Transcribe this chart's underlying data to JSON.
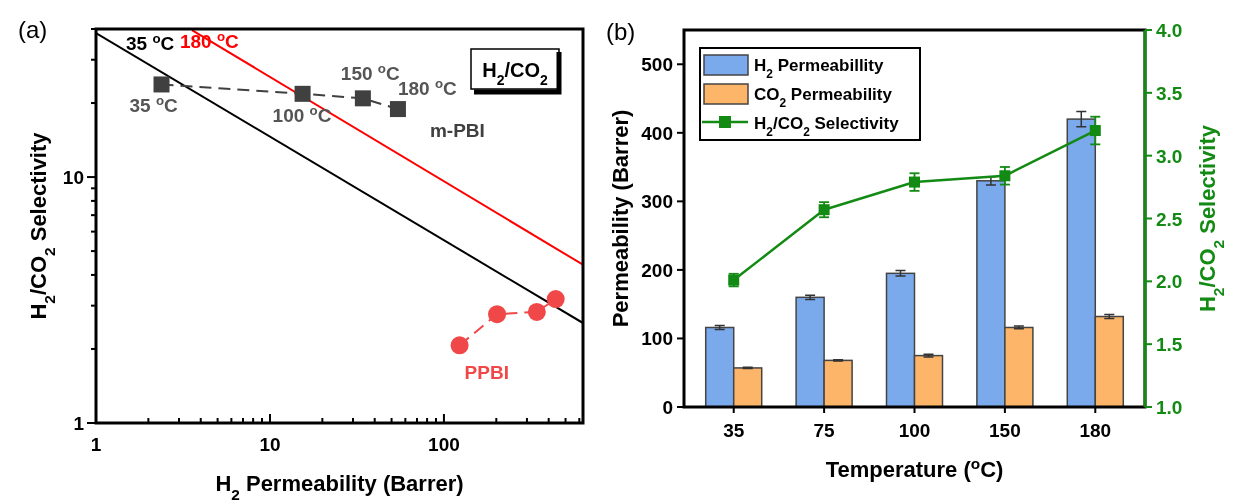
{
  "chart_data": [
    {
      "type": "line",
      "title": "(a)",
      "xlabel": "H$_{2}$ Permeability (Barrer)",
      "ylabel": "H$_{2}$/CO$_{2}$ Selectivity",
      "log": "xy",
      "grid": false,
      "xlim": [
        1,
        630
      ],
      "ylim": [
        1,
        40
      ],
      "xticks": [
        1,
        {
          "value": 2,
          "label": null
        },
        {
          "value": 3,
          "label": null
        },
        {
          "value": 4,
          "label": null
        },
        {
          "value": 5,
          "label": null
        },
        {
          "value": 6,
          "label": null
        },
        {
          "value": 7,
          "label": null
        },
        {
          "value": 8,
          "label": null
        },
        {
          "value": 9,
          "label": null
        },
        10,
        {
          "value": 20,
          "label": null
        },
        {
          "value": 30,
          "label": null
        },
        {
          "value": 40,
          "label": null
        },
        {
          "value": 50,
          "label": null
        },
        {
          "value": 60,
          "label": null
        },
        {
          "value": 70,
          "label": null
        },
        {
          "value": 80,
          "label": null
        },
        {
          "value": 90,
          "label": null
        },
        100,
        {
          "value": 200,
          "label": null
        },
        {
          "value": 300,
          "label": null
        },
        {
          "value": 400,
          "label": null
        },
        {
          "value": 500,
          "label": null
        },
        {
          "value": 600,
          "label": null
        }
      ],
      "yticks": [
        1,
        {
          "value": 2,
          "label": null
        },
        {
          "value": 3,
          "label": null
        },
        {
          "value": 4,
          "label": null
        },
        {
          "value": 5,
          "label": null
        },
        {
          "value": 6,
          "label": null
        },
        {
          "value": 7,
          "label": null
        },
        {
          "value": 8,
          "label": null
        },
        {
          "value": 9,
          "label": null
        },
        10,
        {
          "value": 20,
          "label": null
        },
        {
          "value": 30,
          "label": null
        },
        {
          "value": 40,
          "label": null
        }
      ],
      "series": [
        {
          "name": "35 $^{o}$C",
          "type": "line",
          "color": "#000000",
          "marker": "none",
          "line_style": "solid",
          "x": [
            1,
            630
          ],
          "values": [
            38.5,
            2.55
          ]
        },
        {
          "name": "180 $^{o}$C",
          "type": "line",
          "color": "#ff0000",
          "marker": "none",
          "line_style": "solid",
          "x": [
            3.56,
            630
          ],
          "values": [
            39.6,
            4.4
          ]
        },
        {
          "name": "m-PBI",
          "type": "line",
          "color": "#404040",
          "marker": "square",
          "line_style": "dashed",
          "x": [
            2.38,
            15.4,
            34.2,
            54.4
          ],
          "values": [
            23.8,
            21.8,
            20.9,
            18.9
          ]
        },
        {
          "name": "PPBI",
          "type": "line",
          "color": "#f04848",
          "marker": "circle",
          "line_style": "dashed",
          "x": [
            123,
            202,
            342,
            439
          ],
          "values": [
            2.07,
            2.77,
            2.83,
            3.19
          ]
        }
      ],
      "annotations": [
        {
          "text": "35 $^{o}$C",
          "x": 2.38,
          "y": 23.8
        },
        {
          "text": "100 $^{o}$C",
          "x": 15.4,
          "y": 21.8
        },
        {
          "text": "150 $^{o}$C",
          "x": 34.2,
          "y": 20.9
        },
        {
          "text": "180 $^{o}$C",
          "x": 54.4,
          "y": 18.9
        },
        "H$_{2}$/CO$_{2}$"
      ]
    },
    {
      "type": "bar",
      "title": "(b)",
      "xlabel": "Temperature ($^{o}$C)",
      "ylabel": "Permeability (Barrer)",
      "y2label": "H$_{2}$/CO$_{2}$ Selectivity",
      "grid": false,
      "legend": "top left",
      "categories": [
        "35",
        "75",
        "100",
        "150",
        "180"
      ],
      "ylim": [
        0,
        550
      ],
      "yticks": [
        0,
        100,
        200,
        300,
        400,
        500
      ],
      "y2lim": [
        1,
        4
      ],
      "y2ticks": [
        {
          "value": 1,
          "label": "1.0"
        },
        1.5,
        {
          "value": 2,
          "label": "2.0"
        },
        2.5,
        {
          "value": 3,
          "label": "3.0"
        },
        3.5,
        {
          "value": 4,
          "label": "4.0"
        }
      ],
      "series": [
        {
          "name": "H$_{2}$ Permeabillity",
          "type": "bar",
          "color": "#7aa9ec",
          "values": [
            116,
            160,
            195,
            330,
            420
          ],
          "errors": [
            3,
            3,
            4,
            6,
            11
          ]
        },
        {
          "name": "CO$_{2}$ Permeability",
          "type": "bar",
          "color": "#fdb569",
          "values": [
            57,
            68,
            75,
            116,
            132
          ],
          "errors": [
            1,
            1,
            2,
            2,
            3
          ]
        },
        {
          "name": "H$_{2}$/CO$_{2}$ Selectivity",
          "type": "line",
          "axis": "y2",
          "color": "#138a13",
          "marker": "square",
          "line_style": "solid",
          "values": [
            2.01,
            2.57,
            2.79,
            2.84,
            3.2
          ],
          "errors": [
            0.05,
            0.06,
            0.07,
            0.07,
            0.11
          ]
        }
      ]
    }
  ]
}
